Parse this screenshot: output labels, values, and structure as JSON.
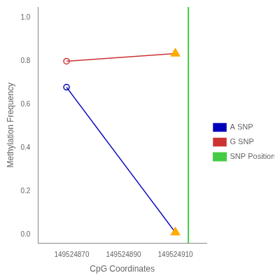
{
  "chart_data": {
    "type": "line",
    "xlabel": "CpG Coordinates",
    "ylabel": "Methylation Frequency",
    "x": [
      149524868,
      149524910
    ],
    "series": [
      {
        "name": "A SNP",
        "color": "#0000bb",
        "values": [
          0.68,
          0.01
        ],
        "marker": [
          "circle",
          "triangle"
        ],
        "colors": [
          "#0000bb",
          "#ffaa00"
        ]
      },
      {
        "name": "G SNP",
        "color": "#cc3333",
        "values": [
          0.8,
          0.835
        ],
        "marker": [
          "circle",
          "triangle"
        ],
        "colors": [
          "#cc3333",
          "#ffaa00"
        ]
      },
      {
        "name": "SNP Position",
        "color": "#44cc44",
        "type": "vline",
        "x": 149524915
      }
    ],
    "xlim": [
      149524857,
      149524922
    ],
    "ylim": [
      -0.04,
      1.05
    ],
    "xticks": [
      149524870,
      149524890,
      149524910
    ],
    "yticks": [
      {
        "value": 0.0,
        "label": "0.0"
      },
      0.2,
      0.4,
      0.6,
      0.8,
      {
        "value": 1.0,
        "label": "1.0"
      }
    ],
    "grid": false,
    "legend": "right"
  }
}
